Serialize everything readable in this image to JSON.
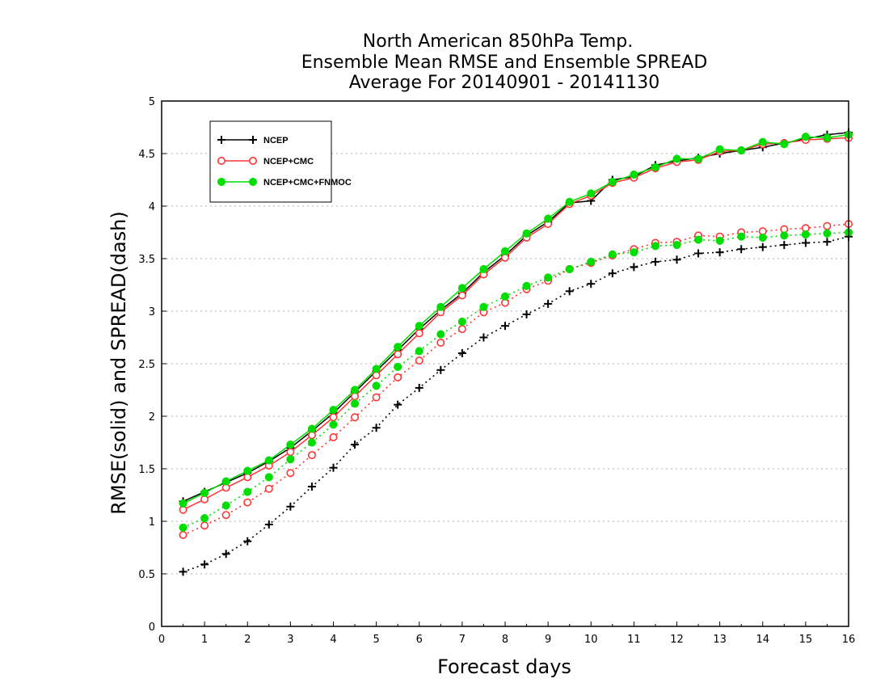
{
  "chart_data": {
    "type": "line",
    "title": [
      "North American 850hPa Temp.",
      "Ensemble Mean RMSE and Ensemble SPREAD",
      "Average For 20140901 - 20141130"
    ],
    "xlabel": "Forecast days",
    "ylabel": "RMSE(solid) and SPREAD(dash)",
    "xlim": [
      0,
      16
    ],
    "ylim": [
      0,
      5
    ],
    "x_ticks": [
      0,
      1,
      2,
      3,
      4,
      5,
      6,
      7,
      8,
      9,
      10,
      11,
      12,
      13,
      14,
      15,
      16
    ],
    "x_tick_labels": [
      "0",
      "1",
      "2",
      "3",
      "4",
      "5",
      "6",
      "7",
      "8",
      "9",
      "10",
      "11",
      "12",
      "13",
      "14",
      "15",
      "16"
    ],
    "y_ticks": [
      0,
      0.5,
      1,
      1.5,
      2,
      2.5,
      3,
      3.5,
      4,
      4.5,
      5
    ],
    "y_tick_labels": [
      "0",
      "0.5",
      "1",
      "1.5",
      "2",
      "2.5",
      "3",
      "3.5",
      "4",
      "4.5",
      "5"
    ],
    "grid": "horizontal dotted",
    "legend_position": "top-left",
    "x": [
      0.5,
      1,
      1.5,
      2,
      2.5,
      3,
      3.5,
      4,
      4.5,
      5,
      5.5,
      6,
      6.5,
      7,
      7.5,
      8,
      8.5,
      9,
      9.5,
      10,
      10.5,
      11,
      11.5,
      12,
      12.5,
      13,
      13.5,
      14,
      14.5,
      15,
      15.5,
      16
    ],
    "series": [
      {
        "name": "NCEP",
        "color": "#000000",
        "marker": "plus",
        "rmse": [
          1.19,
          1.28,
          1.37,
          1.46,
          1.57,
          1.7,
          1.86,
          2.03,
          2.23,
          2.43,
          2.63,
          2.83,
          3.01,
          3.17,
          3.37,
          3.53,
          3.72,
          3.85,
          4.03,
          4.05,
          4.25,
          4.28,
          4.39,
          4.43,
          4.46,
          4.5,
          4.53,
          4.56,
          4.6,
          4.64,
          4.68,
          4.7
        ],
        "spread": [
          0.52,
          0.59,
          0.69,
          0.81,
          0.97,
          1.14,
          1.33,
          1.51,
          1.73,
          1.89,
          2.11,
          2.27,
          2.44,
          2.6,
          2.75,
          2.86,
          2.97,
          3.07,
          3.19,
          3.26,
          3.36,
          3.42,
          3.47,
          3.49,
          3.55,
          3.56,
          3.59,
          3.61,
          3.63,
          3.65,
          3.66,
          3.71
        ]
      },
      {
        "name": "NCEP+CMC",
        "color": "#ff3333",
        "marker": "circle-open",
        "rmse": [
          1.11,
          1.21,
          1.32,
          1.42,
          1.53,
          1.66,
          1.82,
          1.99,
          2.19,
          2.39,
          2.59,
          2.79,
          2.99,
          3.15,
          3.35,
          3.51,
          3.7,
          3.83,
          4.02,
          4.1,
          4.22,
          4.27,
          4.36,
          4.42,
          4.44,
          4.52,
          4.53,
          4.59,
          4.6,
          4.63,
          4.64,
          4.65
        ],
        "spread": [
          0.87,
          0.96,
          1.06,
          1.18,
          1.31,
          1.46,
          1.63,
          1.8,
          1.99,
          2.18,
          2.37,
          2.53,
          2.7,
          2.83,
          2.99,
          3.08,
          3.21,
          3.29,
          3.4,
          3.46,
          3.53,
          3.59,
          3.65,
          3.66,
          3.72,
          3.71,
          3.75,
          3.76,
          3.78,
          3.79,
          3.81,
          3.83
        ]
      },
      {
        "name": "NCEP+CMC+FNMOC",
        "color": "#00dd00",
        "marker": "circle-filled",
        "rmse": [
          1.17,
          1.27,
          1.38,
          1.48,
          1.58,
          1.73,
          1.88,
          2.06,
          2.25,
          2.45,
          2.66,
          2.86,
          3.04,
          3.22,
          3.4,
          3.57,
          3.74,
          3.88,
          4.04,
          4.12,
          4.23,
          4.3,
          4.37,
          4.45,
          4.45,
          4.54,
          4.53,
          4.61,
          4.59,
          4.66,
          4.65,
          4.68
        ],
        "spread": [
          0.94,
          1.03,
          1.15,
          1.28,
          1.42,
          1.59,
          1.75,
          1.92,
          2.12,
          2.29,
          2.47,
          2.62,
          2.78,
          2.9,
          3.04,
          3.14,
          3.24,
          3.32,
          3.4,
          3.47,
          3.54,
          3.56,
          3.62,
          3.63,
          3.68,
          3.67,
          3.71,
          3.7,
          3.72,
          3.73,
          3.74,
          3.75
        ]
      }
    ]
  }
}
